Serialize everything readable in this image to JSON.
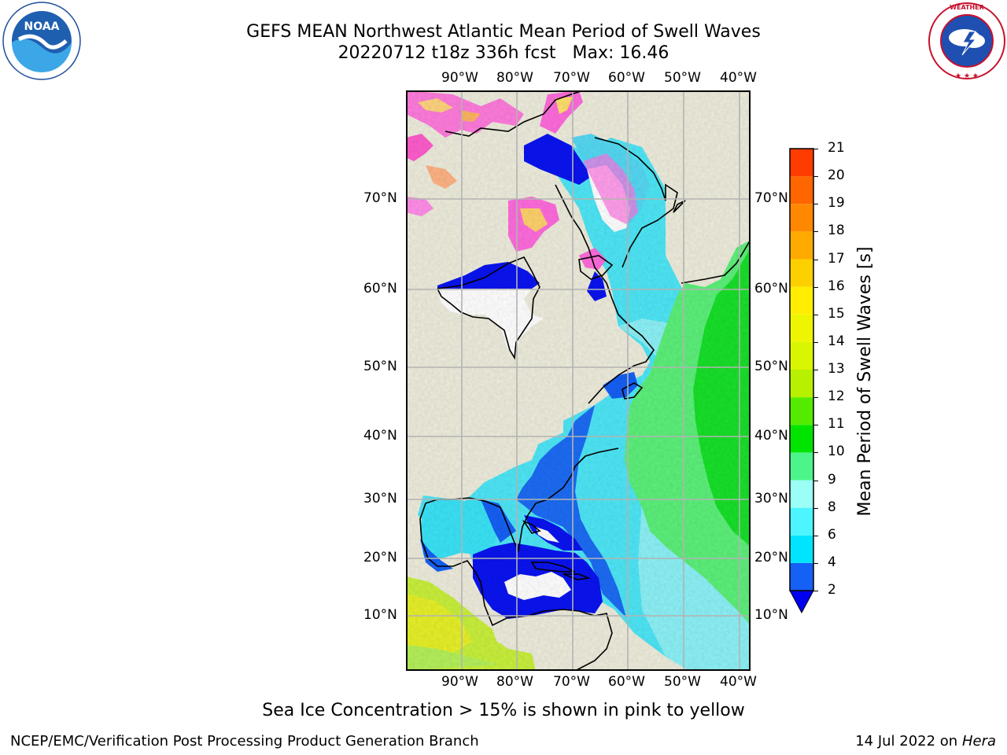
{
  "header": {
    "title_line1": "GEFS MEAN Northwest Atlantic Mean Period of Swell Waves",
    "title_line2": "20220712 t18z 336h fcst",
    "max_label": "Max: 16.46"
  },
  "logos": {
    "left": {
      "name": "noaa-logo",
      "wordmark": "NOAA",
      "ring_text": "NATIONAL OCEANIC AND ATMOSPHERIC ADMINISTRATION · U.S. DEPARTMENT OF COMMERCE"
    },
    "right": {
      "name": "nws-logo",
      "ring_text": "NATIONAL WEATHER SERVICE"
    }
  },
  "map": {
    "lon_labels": [
      "90°W",
      "80°W",
      "70°W",
      "60°W",
      "50°W",
      "40°W"
    ],
    "lat_labels": [
      "70°N",
      "60°N",
      "50°N",
      "40°N",
      "30°N",
      "20°N",
      "10°N"
    ],
    "colors": {
      "land": "#eeecdc",
      "grid": "#b3b3b3",
      "coast": "#000000",
      "ice_note": "pink to yellow"
    }
  },
  "colorbar": {
    "label": "Mean Period of Swell Waves [s]",
    "ticks": [
      "2",
      "4",
      "6",
      "8",
      "9",
      "10",
      "11",
      "12",
      "13",
      "14",
      "15",
      "16",
      "17",
      "18",
      "19",
      "20",
      "21"
    ],
    "colors": [
      "#1560f5",
      "#00e4ff",
      "#4cf5ff",
      "#9bfff5",
      "#4cf58a",
      "#00e400",
      "#55eb00",
      "#b7f000",
      "#d9f500",
      "#eef500",
      "#ffee00",
      "#ffd000",
      "#ffaa00",
      "#ff8800",
      "#ff6600",
      "#ff3c00",
      "#ff0000"
    ],
    "extend_color": "#0000f0"
  },
  "notes": {
    "ice": "Sea Ice Concentration > 15% is shown in pink to yellow"
  },
  "footer": {
    "left": "NCEP/EMC/Verification Post Processing Product Generation Branch",
    "date": "14 Jul 2022",
    "on": "on",
    "machine": "Hera"
  }
}
